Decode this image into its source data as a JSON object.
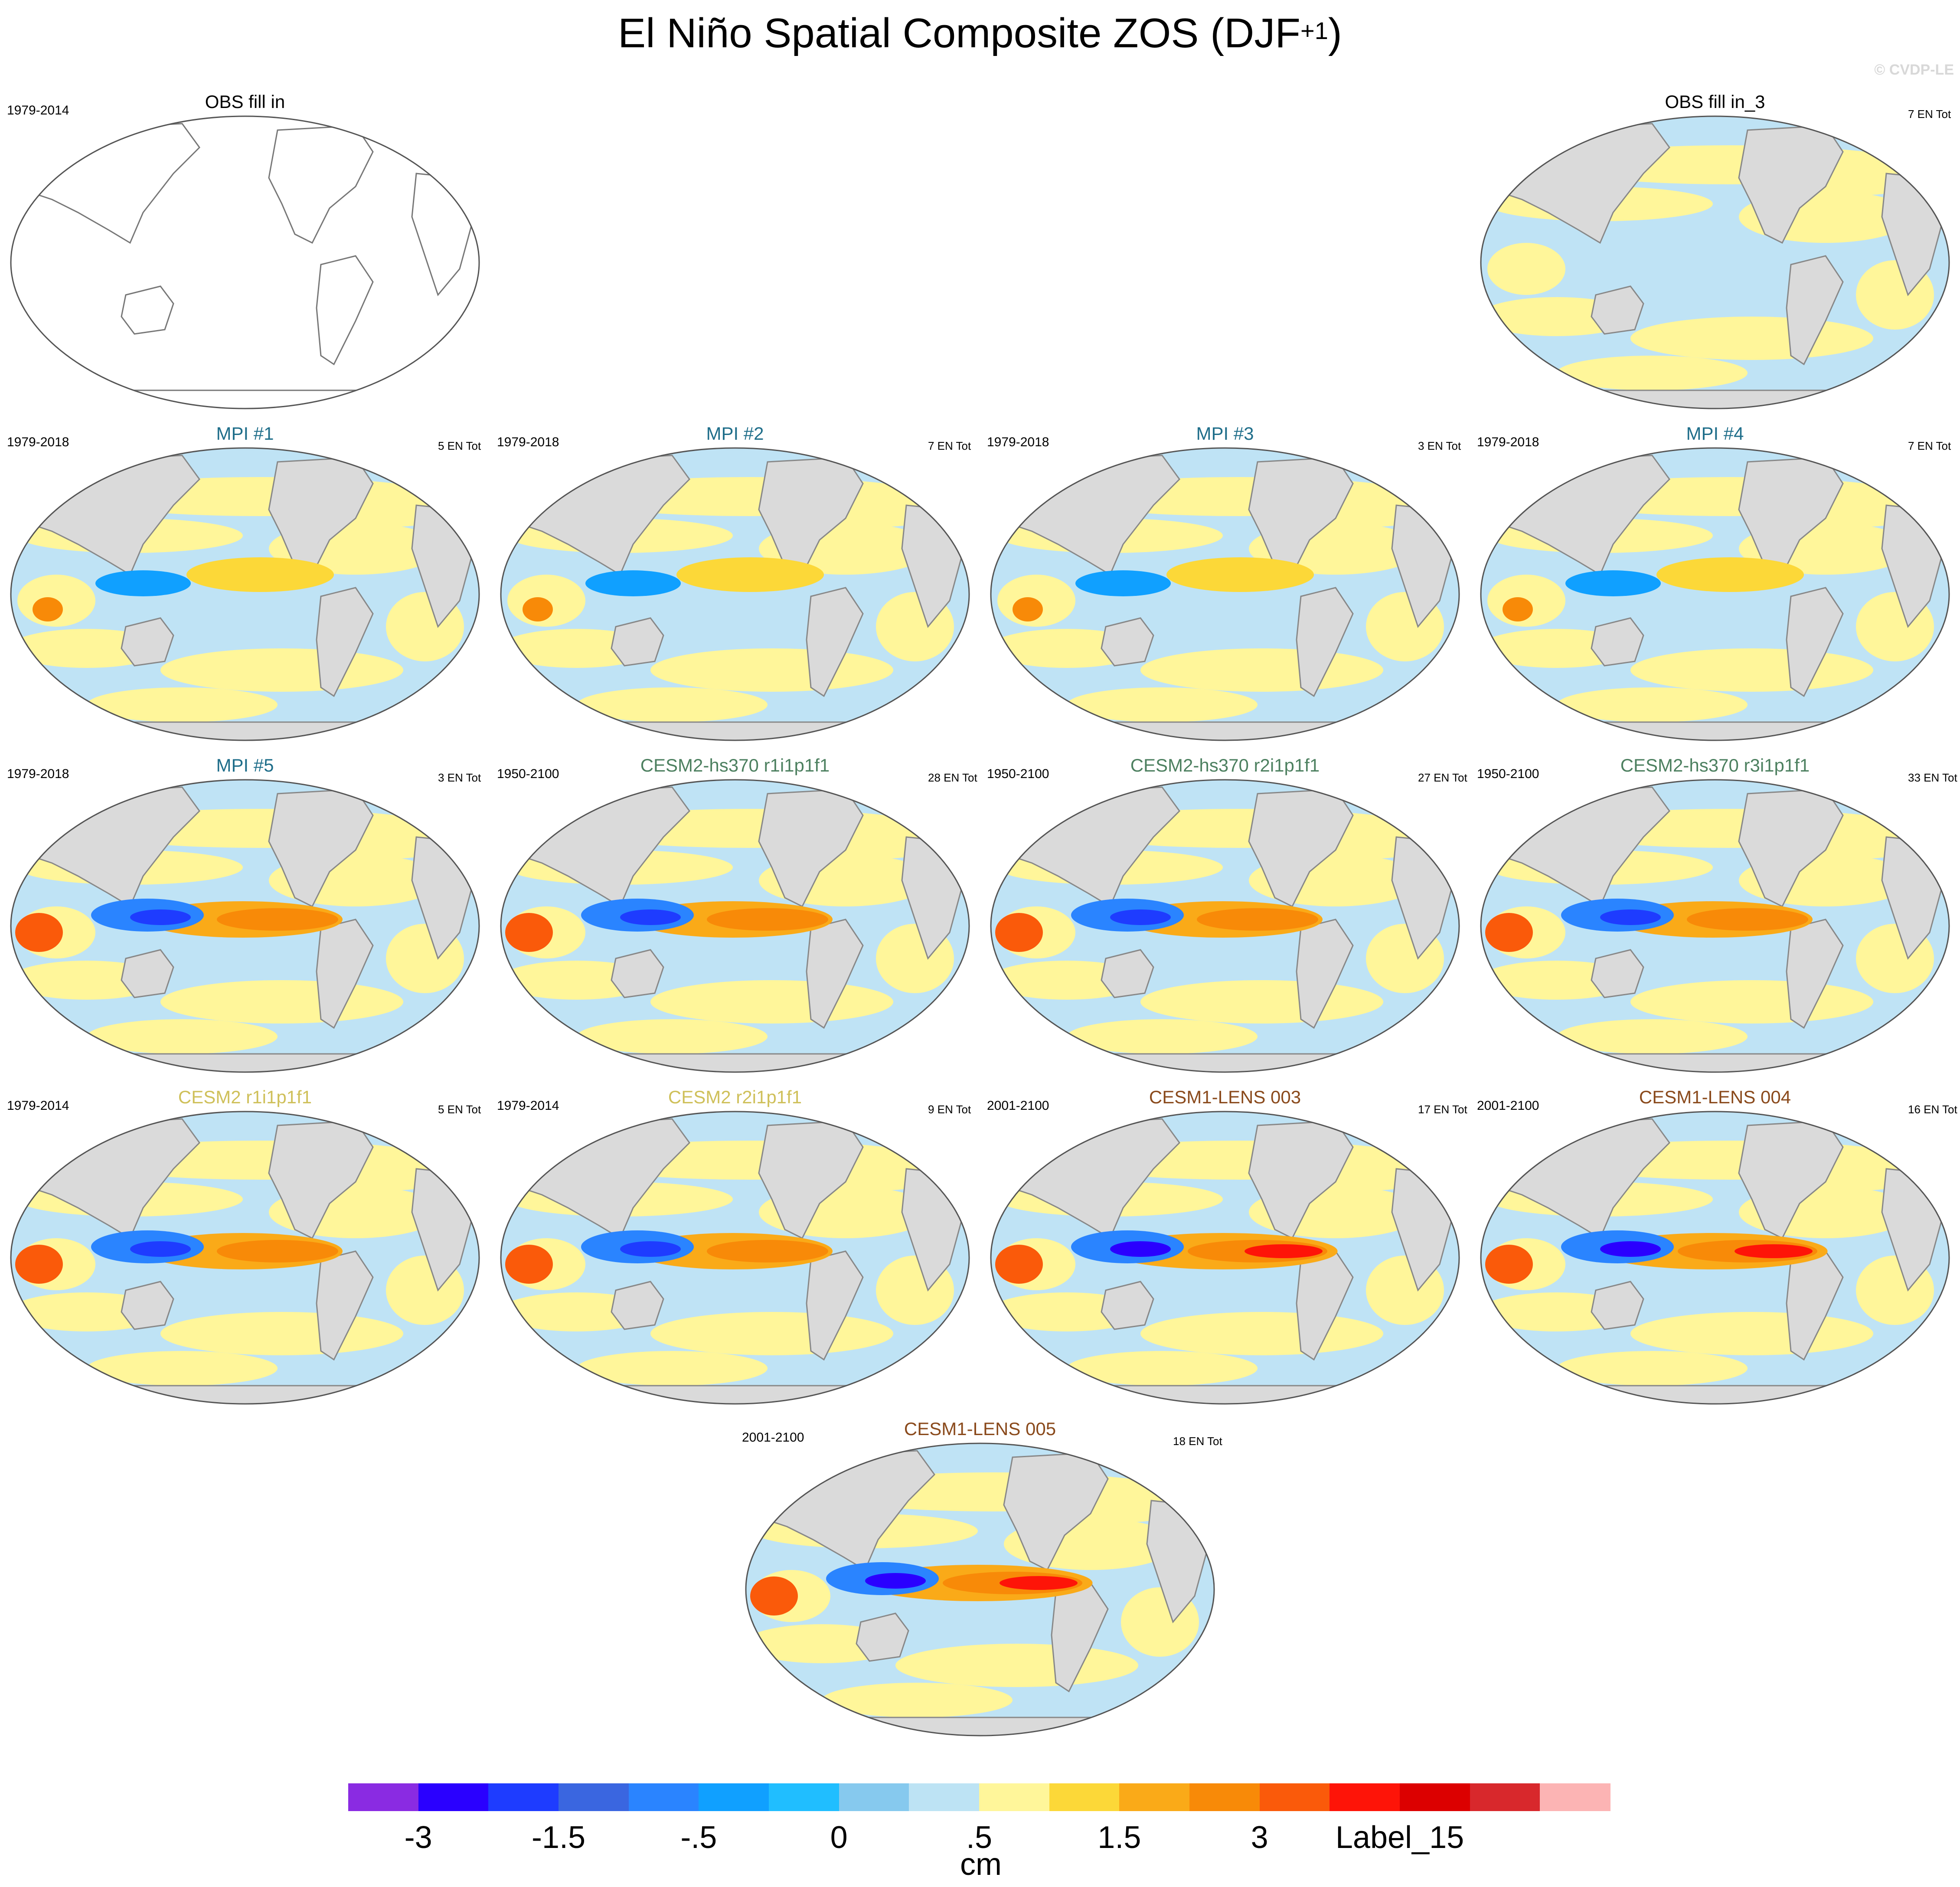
{
  "title": {
    "main": "El Niño Spatial Composite ZOS (DJF",
    "sup": "+1",
    "close": ")"
  },
  "credit": "© CVDP-LE",
  "colors": {
    "land": "#dadada",
    "ocean_yellow": "#fff69a",
    "ocean_lightblue": "#bfe3f5",
    "title_default": "#000000",
    "title_mpi": "#1f6e8a",
    "title_cesm2hs": "#4d8060",
    "title_cesm2": "#cfc05a",
    "title_lens": "#8a4a1c"
  },
  "panels": [
    {
      "title": "OBS fill in",
      "left": "1979-2014",
      "right": "",
      "title_color": "#000000",
      "map": "blank"
    },
    {
      "title": "OBS fill in_3",
      "left": "",
      "right": "7 EN Tot",
      "title_color": "#000000",
      "map": "weak"
    },
    {
      "title": "MPI #1",
      "left": "1979-2018",
      "right": "5 EN Tot",
      "title_color": "#1f6e8a",
      "map": "mpi"
    },
    {
      "title": "MPI #2",
      "left": "1979-2018",
      "right": "7 EN Tot",
      "title_color": "#1f6e8a",
      "map": "mpi-weak"
    },
    {
      "title": "MPI #3",
      "left": "1979-2018",
      "right": "3 EN Tot",
      "title_color": "#1f6e8a",
      "map": "mpi"
    },
    {
      "title": "MPI #4",
      "left": "1979-2018",
      "right": "7 EN Tot",
      "title_color": "#1f6e8a",
      "map": "mpi-weak"
    },
    {
      "title": "MPI #5",
      "left": "1979-2018",
      "right": "3 EN Tot",
      "title_color": "#1f6e8a",
      "map": "mpi-strong"
    },
    {
      "title": "CESM2-hs370 r1i1p1f1",
      "left": "1950-2100",
      "right": "28 EN Tot",
      "title_color": "#4d8060",
      "map": "cesm"
    },
    {
      "title": "CESM2-hs370 r2i1p1f1",
      "left": "1950-2100",
      "right": "27 EN Tot",
      "title_color": "#4d8060",
      "map": "cesm"
    },
    {
      "title": "CESM2-hs370 r3i1p1f1",
      "left": "1950-2100",
      "right": "33 EN Tot",
      "title_color": "#4d8060",
      "map": "cesm"
    },
    {
      "title": "CESM2 r1i1p1f1",
      "left": "1979-2014",
      "right": "5 EN Tot",
      "title_color": "#cfc05a",
      "map": "cesm"
    },
    {
      "title": "CESM2 r2i1p1f1",
      "left": "1979-2014",
      "right": "9 EN Tot",
      "title_color": "#cfc05a",
      "map": "cesm"
    },
    {
      "title": "CESM1-LENS 003",
      "left": "2001-2100",
      "right": "17 EN Tot",
      "title_color": "#8a4a1c",
      "map": "lens"
    },
    {
      "title": "CESM1-LENS 004",
      "left": "2001-2100",
      "right": "16 EN Tot",
      "title_color": "#8a4a1c",
      "map": "lens"
    },
    {
      "title": "CESM1-LENS 005",
      "left": "2001-2100",
      "right": "18 EN Tot",
      "title_color": "#8a4a1c",
      "map": "lens"
    }
  ],
  "colorbar": {
    "colors": [
      "#8a2be2",
      "#2a00ff",
      "#1e3cff",
      "#3a66e0",
      "#2a84ff",
      "#10a0ff",
      "#20beff",
      "#86c9ee",
      "#bde3f4",
      "#fff69a",
      "#fcd838",
      "#faaa18",
      "#f88a08",
      "#fa5a0a",
      "#fe1408",
      "#dc0000",
      "#d8282c",
      "#fcb4b4"
    ],
    "labels": [
      "-3",
      "-1.5",
      "-.5",
      "0",
      ".5",
      "1.5",
      "3",
      "Label_15"
    ],
    "label_positions": [
      1,
      3,
      5,
      7,
      9,
      11,
      13,
      15
    ],
    "units": "cm"
  }
}
